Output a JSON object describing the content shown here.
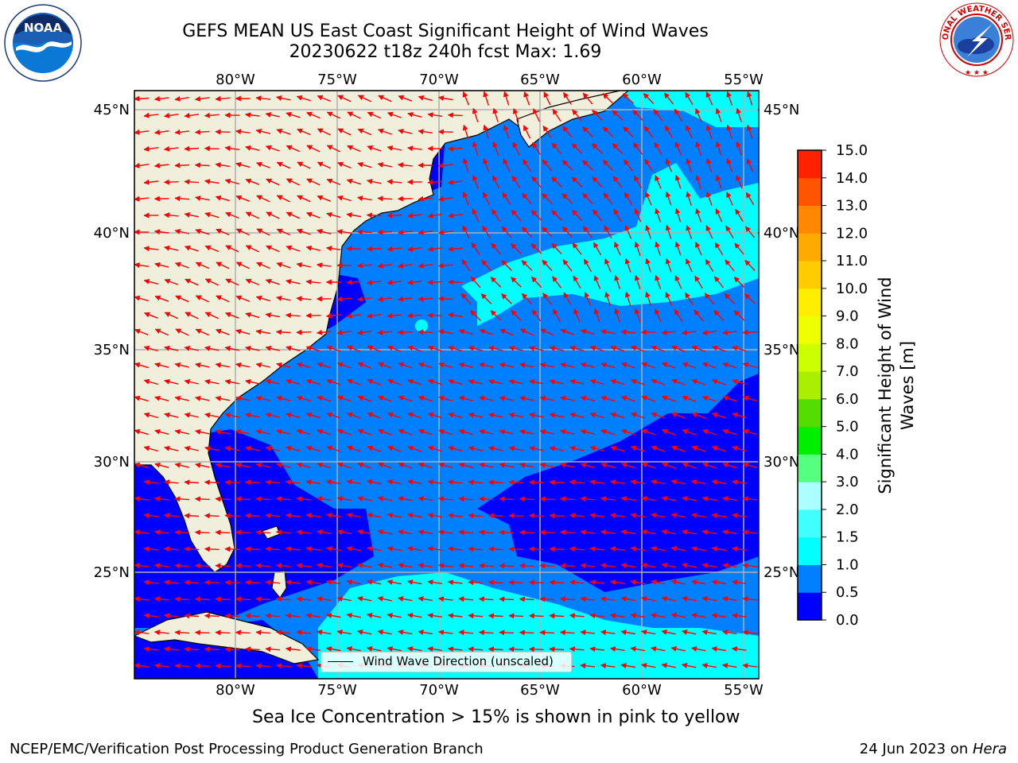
{
  "title_line1": "GEFS MEAN US East Coast Significant Height of Wind Waves",
  "title_line2": "20230622 t18z 240h fcst   Max: 1.69",
  "logos": {
    "left": {
      "name": "noaa-logo",
      "text": "NOAA",
      "ring_text": "NATIONAL OCEANIC AND ATMOSPHERIC ADMINISTRATION · U.S. DEPARTMENT OF COMMERCE"
    },
    "right": {
      "name": "nws-logo",
      "ring_text": "NATIONAL WEATHER SERVICE"
    }
  },
  "map": {
    "lon_labels": [
      "80°W",
      "75°W",
      "70°W",
      "65°W",
      "60°W",
      "55°W"
    ],
    "lat_labels": [
      "45°N",
      "40°N",
      "35°N",
      "30°N",
      "25°N"
    ],
    "legend_label": "Wind Wave Direction (unscaled)"
  },
  "colorbar": {
    "label": "Significant Height of Wind Waves [m]",
    "ticks": [
      "0.0",
      "0.5",
      "1.0",
      "1.5",
      "2.0",
      "3.0",
      "4.0",
      "5.0",
      "6.0",
      "7.0",
      "8.0",
      "9.0",
      "10.0",
      "11.0",
      "12.0",
      "13.0",
      "14.0",
      "15.0"
    ],
    "colors": [
      "#0000ff",
      "#0080ff",
      "#00ffff",
      "#40ffff",
      "#aaffff",
      "#55ff80",
      "#00ee00",
      "#55dd00",
      "#aaee00",
      "#ccff00",
      "#eeff00",
      "#ffee00",
      "#ffcc00",
      "#ffaa00",
      "#ff8800",
      "#ff5500",
      "#ff2200"
    ]
  },
  "colors": {
    "land": "#efefdc",
    "arrow": "#ff0000",
    "grid": "#b0b0b0"
  },
  "sea_ice_note": "Sea Ice Concentration > 15% is shown in pink to yellow",
  "footer_left": "NCEP/EMC/Verification Post Processing Product Generation Branch",
  "footer_right_date": "24 Jun 2023 on ",
  "footer_right_machine": "Hera"
}
